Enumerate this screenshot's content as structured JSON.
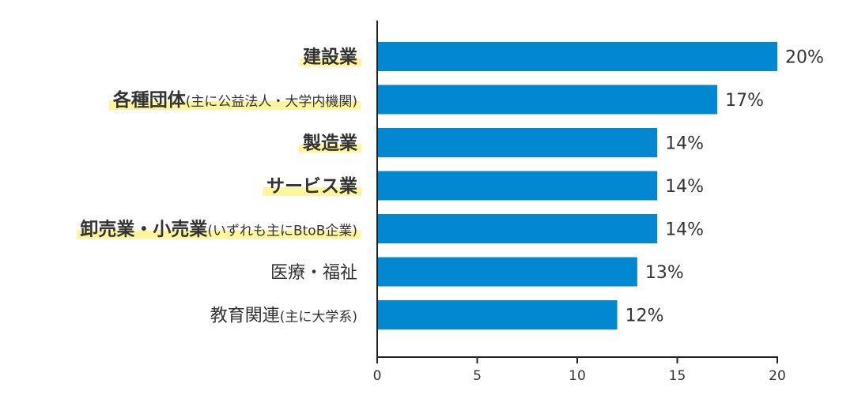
{
  "chart_data": {
    "type": "bar",
    "orientation": "horizontal",
    "categories": [
      {
        "main": "建設業",
        "sub": "",
        "bold": true,
        "highlight": true
      },
      {
        "main": "各種団体",
        "sub": "(主に公益法人・大学内機関)",
        "bold": true,
        "highlight": true
      },
      {
        "main": "製造業",
        "sub": "",
        "bold": true,
        "highlight": true
      },
      {
        "main": "サービス業",
        "sub": "",
        "bold": true,
        "highlight": true
      },
      {
        "main": "卸売業・小売業",
        "sub": "(いずれも主にBtoB企業)",
        "bold": true,
        "highlight": true
      },
      {
        "main": "医療・福祉",
        "sub": "",
        "bold": false,
        "highlight": false
      },
      {
        "main": "教育関連",
        "sub": "(主に大学系)",
        "bold": false,
        "highlight": false
      }
    ],
    "values": [
      20,
      17,
      14,
      14,
      14,
      13,
      12
    ],
    "value_labels": [
      "20%",
      "17%",
      "14%",
      "14%",
      "14%",
      "13%",
      "12%"
    ],
    "xlim": [
      0,
      20
    ],
    "xticks": [
      0,
      5,
      10,
      15,
      20
    ],
    "xtick_labels": [
      "0",
      "5",
      "10",
      "15",
      "20"
    ],
    "grid": false
  },
  "colors": {
    "bar": "#0288d1",
    "highlight": "#fff59d",
    "axis": "#222222",
    "text": "#333333"
  }
}
